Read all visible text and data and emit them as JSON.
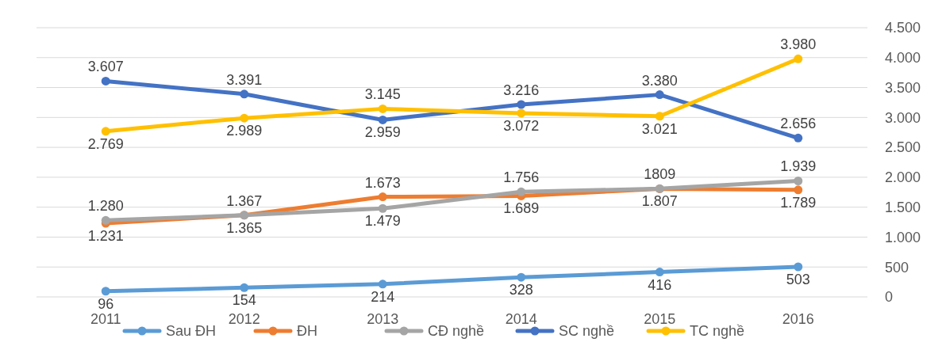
{
  "chart_data": {
    "type": "line",
    "categories": [
      "2011",
      "2012",
      "2013",
      "2014",
      "2015",
      "2016"
    ],
    "series": [
      {
        "name": "Sau ĐH",
        "color": "#5b9bd5",
        "values": [
          96,
          154,
          214,
          328,
          416,
          503
        ],
        "value_labels": [
          "96",
          "154",
          "214",
          "328",
          "416",
          "503"
        ]
      },
      {
        "name": "ĐH",
        "color": "#ed7d31",
        "values": [
          1231,
          1367,
          1673,
          1689,
          1807,
          1789
        ],
        "value_labels": [
          "1.231",
          "1.367",
          "1.673",
          "1.689",
          "1.807",
          "1.789"
        ]
      },
      {
        "name": "CĐ nghề",
        "color": "#a5a5a5",
        "values": [
          1280,
          1365,
          1479,
          1756,
          1809,
          1939
        ],
        "value_labels": [
          "1.280",
          "1.365",
          "1.479",
          "1.756",
          "1809",
          "1.939"
        ]
      },
      {
        "name": "SC nghề",
        "color": "#4472c4",
        "values": [
          3607,
          3391,
          2959,
          3216,
          3380,
          2656
        ],
        "value_labels": [
          "3.607",
          "3.391",
          "2.959",
          "3.216",
          "3.380",
          "2.656"
        ]
      },
      {
        "name": "TC nghề",
        "color": "#ffc000",
        "values": [
          2769,
          2989,
          3145,
          3072,
          3021,
          3980
        ],
        "value_labels": [
          "2.769",
          "2.989",
          "3.145",
          "3.072",
          "3.021",
          "3.980"
        ]
      }
    ],
    "ylim": [
      0,
      4500
    ],
    "yticks": [
      0,
      {
        "value": 500,
        "label": "500"
      },
      {
        "value": 1000,
        "label": "1.000"
      },
      {
        "value": 1500,
        "label": "1.500"
      },
      {
        "value": 2000,
        "label": "2.000"
      },
      {
        "value": 2500,
        "label": "2.500"
      },
      {
        "value": 3000,
        "label": "3.000"
      },
      {
        "value": 3500,
        "label": "3.500"
      },
      {
        "value": 4000,
        "label": "4.000"
      },
      {
        "value": 4500,
        "label": "4.500"
      }
    ],
    "grid": "y",
    "legend": "bottom",
    "marker": "circle",
    "line_style": "solid"
  }
}
